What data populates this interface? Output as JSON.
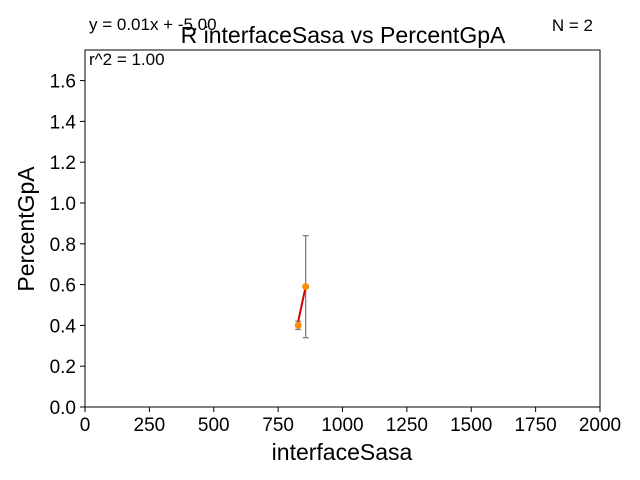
{
  "chart_data": {
    "type": "scatter",
    "title": "R interfaceSasa vs PercentGpA",
    "xlabel": "interfaceSasa",
    "ylabel": "PercentGpA",
    "xlim": [
      0,
      2000
    ],
    "ylim": [
      0,
      1.75
    ],
    "xticks": [
      0,
      250,
      500,
      750,
      1000,
      1250,
      1500,
      1750,
      2000
    ],
    "yticks": [
      0.0,
      0.2,
      0.4,
      0.6,
      0.8,
      1.0,
      1.2,
      1.4,
      1.6
    ],
    "points": [
      {
        "x": 828,
        "y": 0.4,
        "yerr": 0.02
      },
      {
        "x": 857,
        "y": 0.59,
        "yerr": 0.25
      }
    ],
    "fit_line": {
      "slope": 0.01,
      "intercept": -5.0,
      "x_range": [
        828,
        857
      ]
    },
    "annotations": {
      "equation": "y = 0.01x + -5.00",
      "r2": "r^2 = 1.00",
      "n": "N = 2"
    },
    "grid": false,
    "colors": {
      "points": "#ff8c00",
      "fit": "#d00000",
      "errorbar": "#808080"
    }
  }
}
